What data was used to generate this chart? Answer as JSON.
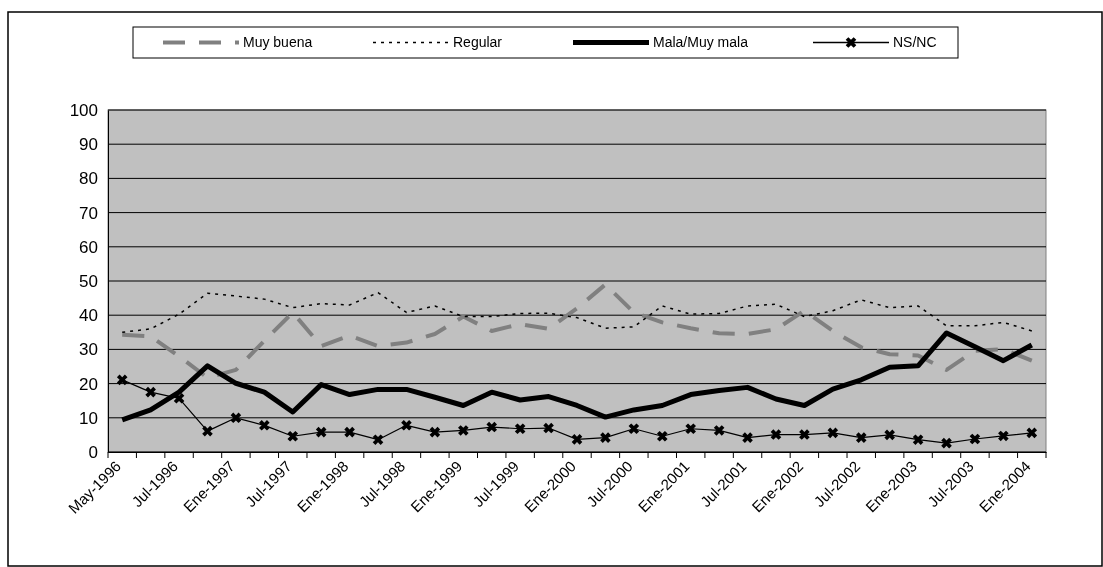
{
  "chart_data": {
    "type": "line",
    "categories": [
      "May-1996",
      null,
      "Jul-1996",
      null,
      "Ene-1997",
      null,
      "Jul-1997",
      null,
      "Ene-1998",
      null,
      "Jul-1998",
      null,
      "Ene-1999",
      null,
      "Jul-1999",
      null,
      "Ene-2000",
      null,
      "Jul-2000",
      null,
      "Ene-2001",
      null,
      "Jul-2001",
      null,
      "Ene-2002",
      null,
      "Jul-2002",
      null,
      "Ene-2003",
      null,
      "Jul-2003",
      null,
      "Ene-2004"
    ],
    "series": [
      {
        "name": "Muy buena",
        "color": "#808080",
        "line_style": "dashed",
        "marker": "none",
        "values": [
          34.3,
          33.8,
          28,
          21.7,
          24,
          32.5,
          40.8,
          31,
          34,
          31,
          32,
          34.5,
          39.6,
          35.4,
          37.4,
          36,
          42,
          49,
          40.8,
          37.9,
          36.2,
          34.7,
          34.5,
          35.9,
          41.3,
          35.4,
          30.6,
          28.6,
          28.2,
          24,
          29.6,
          30.1,
          26.7
        ]
      },
      {
        "name": "Regular",
        "color": "#000000",
        "line_style": "dotted",
        "marker": "none",
        "values": [
          35,
          36,
          40.3,
          46.4,
          45.6,
          44.7,
          42.2,
          43.4,
          43,
          46.6,
          40.8,
          42.7,
          39.6,
          39.6,
          40.5,
          40.6,
          39.3,
          36.2,
          36.6,
          42.7,
          40.3,
          40.5,
          42.7,
          43.2,
          39.6,
          41.3,
          44.5,
          42.2,
          42.7,
          36.9,
          36.9,
          37.9,
          35.4
        ]
      },
      {
        "name": "Mala/Muy mala",
        "color": "#000000",
        "line_style": "solid",
        "marker": "none",
        "values": [
          9.4,
          12.3,
          17.5,
          25.2,
          20.1,
          17.5,
          11.7,
          19.7,
          16.8,
          18.3,
          18.3,
          16,
          13.6,
          17.5,
          15.2,
          16.2,
          13.6,
          10.2,
          12.3,
          13.6,
          16.8,
          18,
          18.9,
          15.5,
          13.6,
          18.4,
          21.1,
          24.8,
          25.2,
          34.8,
          30.8,
          26.7,
          31.3
        ]
      },
      {
        "name": "NS/NC",
        "color": "#000000",
        "line_style": "solid",
        "marker": "cross",
        "values": [
          21.1,
          17.5,
          15.7,
          6.1,
          10,
          7.8,
          4.6,
          5.8,
          5.8,
          3.6,
          7.8,
          5.8,
          6.3,
          7.3,
          6.8,
          7,
          3.7,
          4.2,
          6.8,
          4.6,
          6.8,
          6.3,
          4.2,
          5.1,
          5.1,
          5.6,
          4.2,
          5,
          3.6,
          2.6,
          3.8,
          4.7,
          5.6
        ]
      }
    ],
    "ylim": [
      0,
      100
    ],
    "yticks": [
      0,
      10,
      20,
      30,
      40,
      50,
      60,
      70,
      80,
      90,
      100
    ],
    "grid": "y",
    "legend": "top"
  }
}
